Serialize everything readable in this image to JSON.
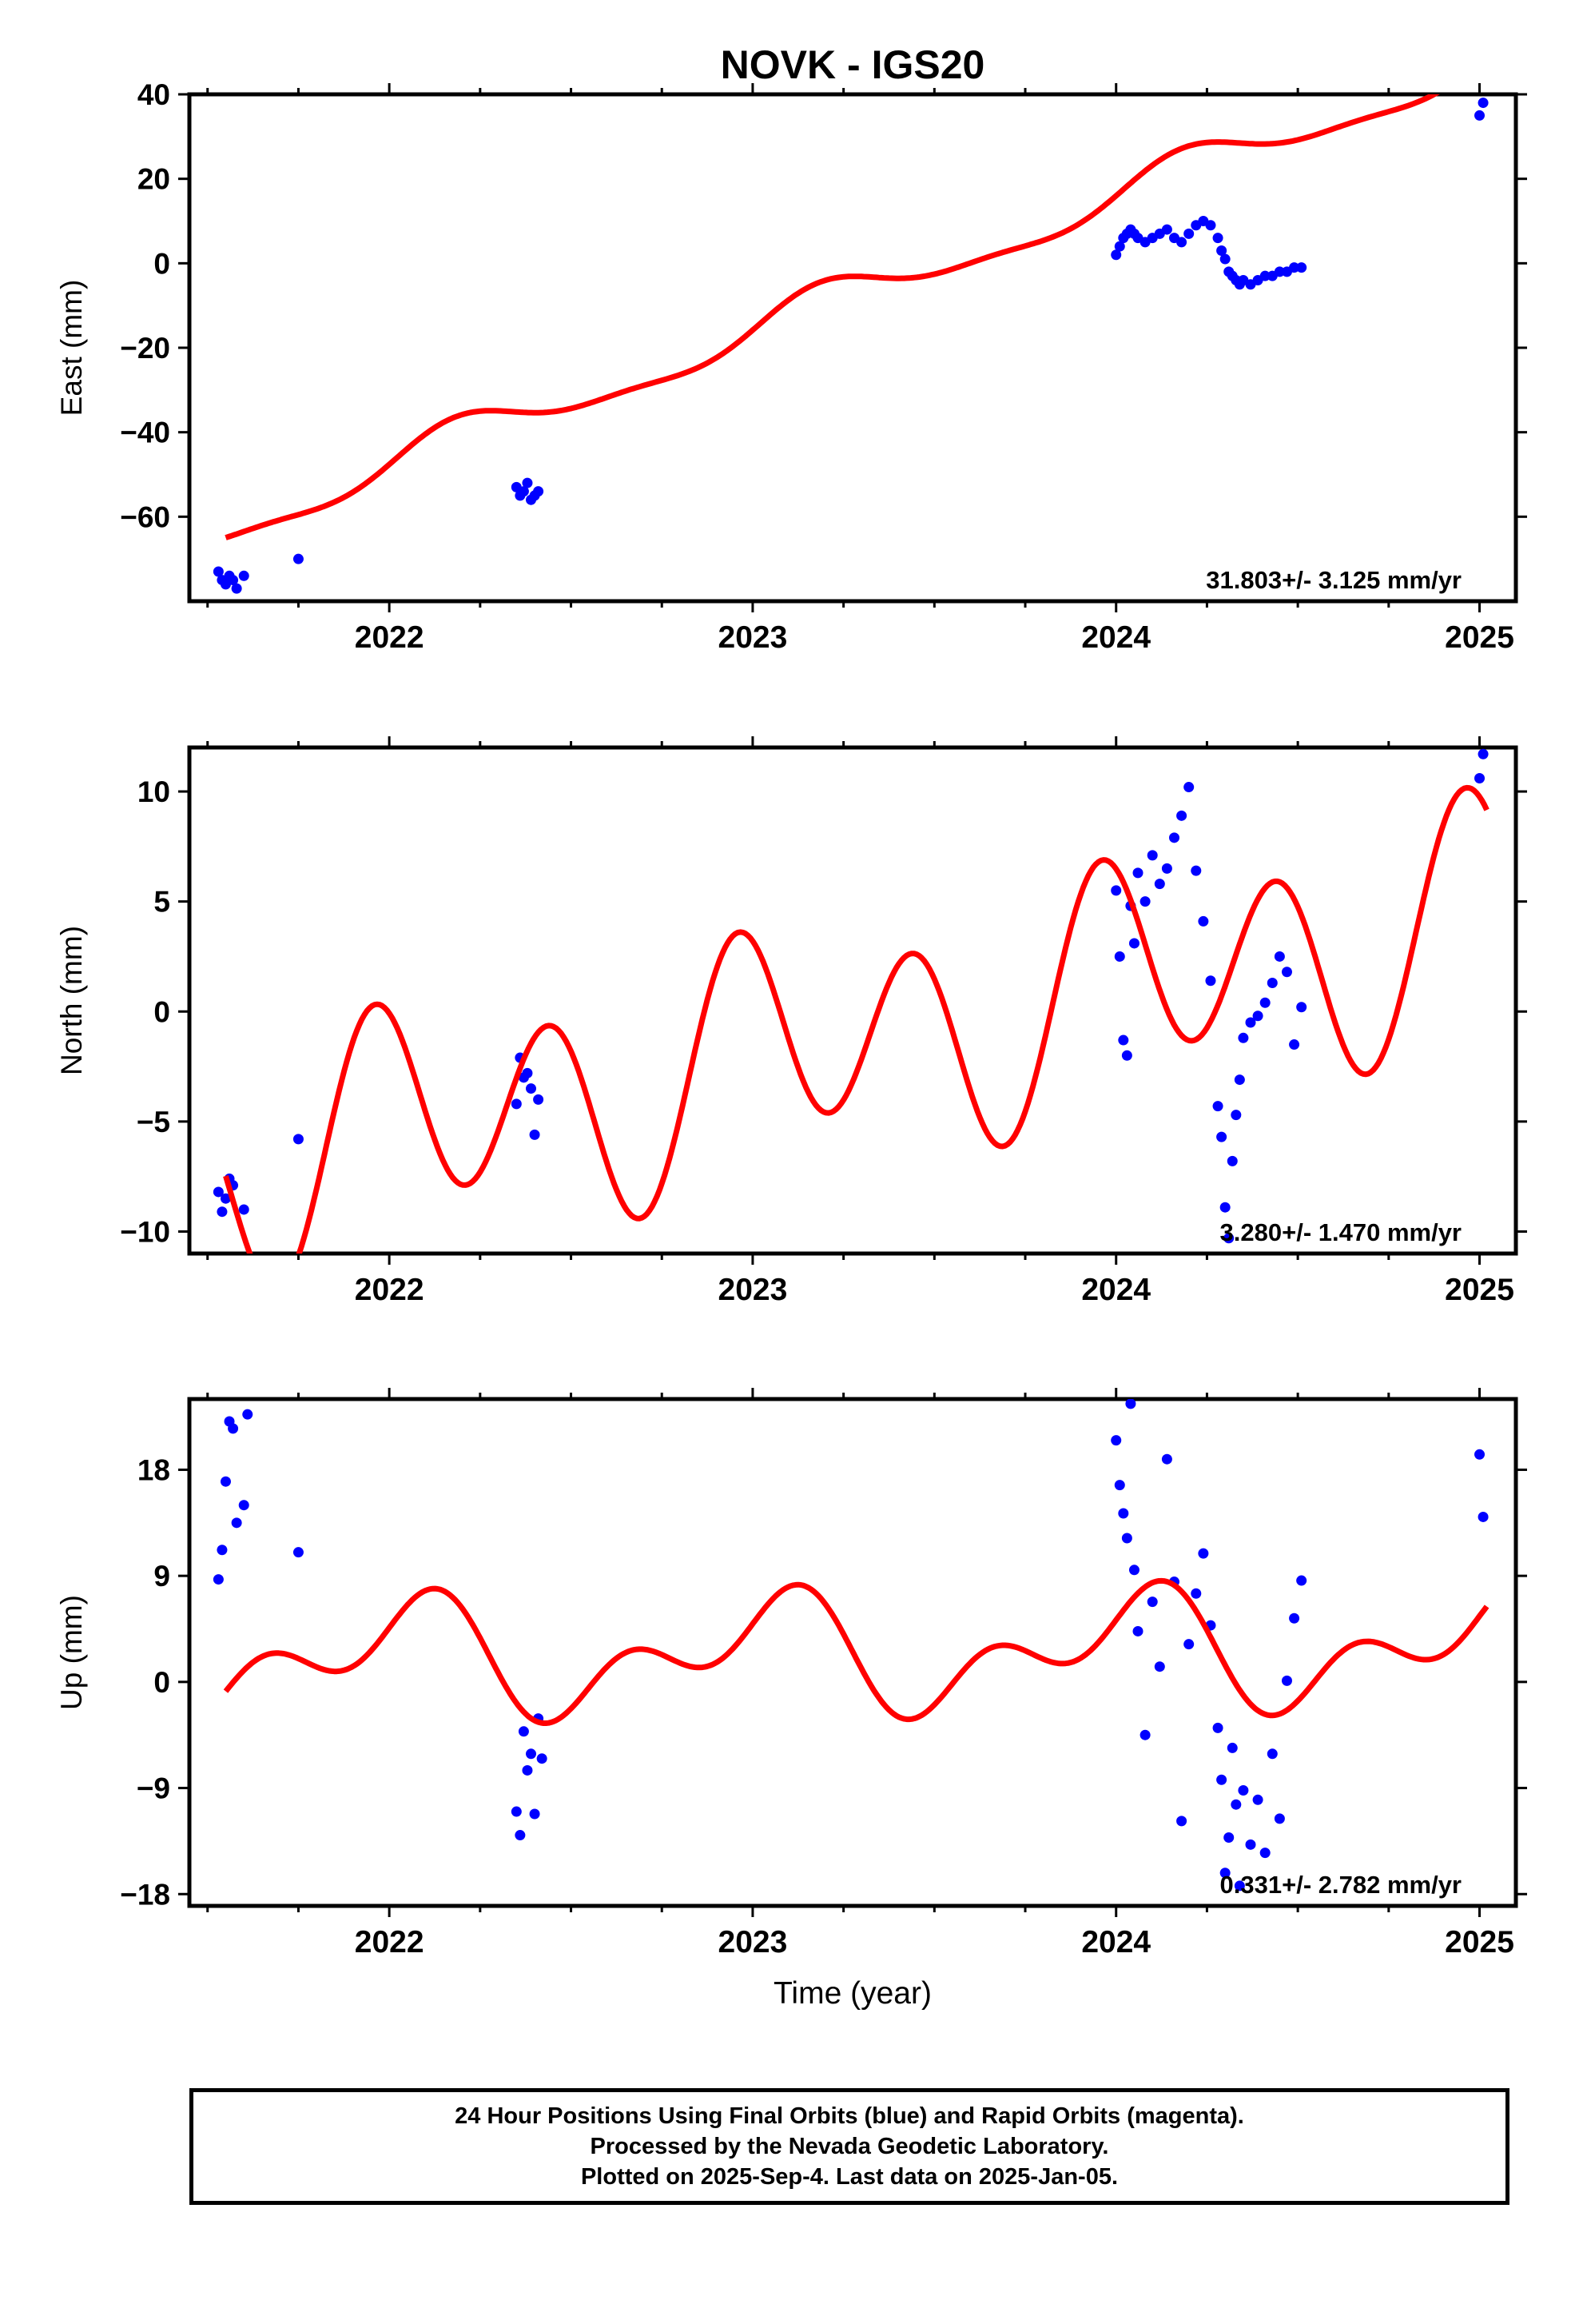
{
  "title": "NOVK - IGS20",
  "chart_data": [
    {
      "type": "scatter",
      "panel": "east",
      "ylabel": "East (mm)",
      "xlabel": "",
      "xlim": [
        2021.45,
        2025.1
      ],
      "ylim": [
        -80,
        40
      ],
      "yticks": [
        40,
        20,
        0,
        -20,
        -40,
        -60
      ],
      "ytick_labels": [
        "40",
        "20",
        "0",
        "−20",
        "−40",
        "−60"
      ],
      "xticks": [
        2022,
        2023,
        2024,
        2025
      ],
      "xtick_labels": [
        "2022",
        "2023",
        "2024",
        "2025"
      ],
      "rate_label": "31.803+/- 3.125 mm/yr",
      "series": [
        {
          "name": "",
          "kind": "points",
          "color": "#0000ff",
          "x": [
            2021.53,
            2021.54,
            2021.55,
            2021.56,
            2021.57,
            2021.58,
            2021.6,
            2021.75,
            2022.35,
            2022.36,
            2022.37,
            2022.38,
            2022.39,
            2022.4,
            2022.41,
            2024.0,
            2024.01,
            2024.02,
            2024.03,
            2024.04,
            2024.05,
            2024.06,
            2024.08,
            2024.1,
            2024.12,
            2024.14,
            2024.16,
            2024.18,
            2024.2,
            2024.22,
            2024.24,
            2024.26,
            2024.28,
            2024.29,
            2024.3,
            2024.31,
            2024.32,
            2024.33,
            2024.34,
            2024.35,
            2024.37,
            2024.39,
            2024.41,
            2024.43,
            2024.45,
            2024.47,
            2024.49,
            2024.51,
            2025.0,
            2025.01
          ],
          "y": [
            -73,
            -75,
            -76,
            -74,
            -75,
            -77,
            -74,
            -70,
            -53,
            -55,
            -54,
            -52,
            -56,
            -55,
            -54,
            2,
            4,
            6,
            7,
            8,
            7,
            6,
            5,
            6,
            7,
            8,
            6,
            5,
            7,
            9,
            10,
            9,
            6,
            3,
            1,
            -2,
            -3,
            -4,
            -5,
            -4,
            -5,
            -4,
            -3,
            -3,
            -2,
            -2,
            -1,
            -1,
            35,
            38
          ]
        },
        {
          "name": "",
          "kind": "model",
          "color": "#ff0000",
          "rate": 31.803,
          "offset": -16.3,
          "terms": [
            [
              4.5,
              6.283,
              0.3
            ],
            [
              1.5,
              12.566,
              -0.6
            ]
          ],
          "t0": 2023.0,
          "x_start": 2021.55,
          "x_end": 2025.02
        }
      ]
    },
    {
      "type": "scatter",
      "panel": "north",
      "ylabel": "North (mm)",
      "xlabel": "",
      "xlim": [
        2021.45,
        2025.1
      ],
      "ylim": [
        -11,
        12
      ],
      "yticks": [
        10,
        5,
        0,
        -5,
        -10
      ],
      "ytick_labels": [
        "10",
        "5",
        "0",
        "−5",
        "−10"
      ],
      "xticks": [
        2022,
        2023,
        2024,
        2025
      ],
      "xtick_labels": [
        "2022",
        "2023",
        "2024",
        "2025"
      ],
      "rate_label": "3.280+/- 1.470 mm/yr",
      "series": [
        {
          "name": "",
          "kind": "points",
          "color": "#0000ff",
          "x": [
            2021.53,
            2021.54,
            2021.55,
            2021.56,
            2021.57,
            2021.6,
            2021.75,
            2022.35,
            2022.36,
            2022.37,
            2022.38,
            2022.39,
            2022.4,
            2022.41,
            2024.0,
            2024.01,
            2024.02,
            2024.03,
            2024.04,
            2024.05,
            2024.06,
            2024.08,
            2024.1,
            2024.12,
            2024.14,
            2024.16,
            2024.18,
            2024.2,
            2024.22,
            2024.24,
            2024.26,
            2024.28,
            2024.29,
            2024.3,
            2024.31,
            2024.32,
            2024.33,
            2024.34,
            2024.35,
            2024.37,
            2024.39,
            2024.41,
            2024.43,
            2024.45,
            2024.47,
            2024.49,
            2024.51,
            2025.0,
            2025.01
          ],
          "y": [
            -8.2,
            -9.1,
            -8.5,
            -7.6,
            -7.9,
            -9.0,
            -5.8,
            -4.2,
            -2.1,
            -3.0,
            -2.8,
            -3.5,
            -5.6,
            -4.0,
            5.5,
            2.5,
            -1.3,
            -2.0,
            4.8,
            3.1,
            6.3,
            5.0,
            7.1,
            5.8,
            6.5,
            7.9,
            8.9,
            10.2,
            6.4,
            4.1,
            1.4,
            -4.3,
            -5.7,
            -8.9,
            -10.3,
            -6.8,
            -4.7,
            -3.1,
            -1.2,
            -0.5,
            -0.2,
            0.4,
            1.3,
            2.5,
            1.8,
            -1.5,
            0.2,
            10.6,
            11.7
          ]
        },
        {
          "name": "",
          "kind": "model",
          "color": "#ff0000",
          "rate": 3.28,
          "offset": -2.2,
          "terms": [
            [
              4.6,
              12.566,
              2.2
            ],
            [
              2.0,
              6.283,
              1.0
            ]
          ],
          "t0": 2023.0,
          "x_start": 2021.55,
          "x_end": 2025.02
        }
      ]
    },
    {
      "type": "scatter",
      "panel": "up",
      "ylabel": "Up (mm)",
      "xlabel": "Time (year)",
      "xlim": [
        2021.45,
        2025.1
      ],
      "ylim": [
        -19,
        24
      ],
      "yticks": [
        18,
        9,
        0,
        -9,
        -18
      ],
      "ytick_labels": [
        "18",
        "9",
        "0",
        "−9",
        "−18"
      ],
      "xticks": [
        2022,
        2023,
        2024,
        2025
      ],
      "xtick_labels": [
        "2022",
        "2023",
        "2024",
        "2025"
      ],
      "rate_label": "0.331+/- 2.782 mm/yr",
      "series": [
        {
          "name": "",
          "kind": "points",
          "color": "#0000ff",
          "x": [
            2021.53,
            2021.54,
            2021.55,
            2021.56,
            2021.57,
            2021.58,
            2021.6,
            2021.61,
            2021.75,
            2022.35,
            2022.36,
            2022.37,
            2022.38,
            2022.39,
            2022.4,
            2022.41,
            2022.42,
            2024.0,
            2024.01,
            2024.02,
            2024.03,
            2024.04,
            2024.05,
            2024.06,
            2024.08,
            2024.1,
            2024.12,
            2024.14,
            2024.16,
            2024.18,
            2024.2,
            2024.22,
            2024.24,
            2024.26,
            2024.28,
            2024.29,
            2024.3,
            2024.31,
            2024.32,
            2024.33,
            2024.34,
            2024.35,
            2024.37,
            2024.39,
            2024.41,
            2024.43,
            2024.45,
            2024.47,
            2024.49,
            2024.51,
            2025.0,
            2025.01
          ],
          "y": [
            8.7,
            11.2,
            17.0,
            22.1,
            21.5,
            13.5,
            15.0,
            22.7,
            11.0,
            -11.0,
            -13.0,
            -4.2,
            -7.5,
            -6.1,
            -11.2,
            -3.1,
            -6.5,
            20.5,
            16.7,
            14.3,
            12.2,
            23.6,
            9.5,
            4.3,
            -4.5,
            6.8,
            1.3,
            18.9,
            8.5,
            -11.8,
            3.2,
            7.5,
            10.9,
            4.8,
            -3.9,
            -8.3,
            -16.2,
            -13.2,
            -5.6,
            -10.4,
            -17.3,
            -9.2,
            -13.8,
            -10.0,
            -14.5,
            -6.1,
            -11.6,
            0.1,
            5.4,
            8.6,
            19.3,
            14.0
          ]
        },
        {
          "name": "",
          "kind": "model",
          "color": "#ff0000",
          "rate": 0.331,
          "offset": 2.3,
          "terms": [
            [
              3.0,
              12.566,
              -0.3
            ],
            [
              3.6,
              6.283,
              1.35
            ]
          ],
          "t0": 2023.0,
          "x_start": 2021.55,
          "x_end": 2025.02
        }
      ]
    }
  ],
  "footer": {
    "line1": "24 Hour Positions Using Final Orbits (blue) and Rapid Orbits (magenta).",
    "line2": "Processed by the Nevada Geodetic Laboratory.",
    "line3": "Plotted on 2025-Sep-4. Last data on 2025-Jan-05."
  }
}
